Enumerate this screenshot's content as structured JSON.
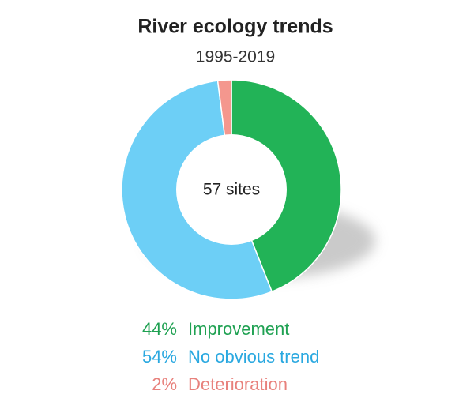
{
  "chart_data": {
    "type": "pie",
    "title": "River ecology trends",
    "subtitle": "1995-2019",
    "center_label": "57 sites",
    "categories": [
      "Improvement",
      "No obvious trend",
      "Deterioration"
    ],
    "values": [
      44,
      54,
      2
    ],
    "value_labels": [
      "44%",
      "54%",
      "2%"
    ],
    "colors": [
      "#22b357",
      "#6dcff6",
      "#f4978e"
    ],
    "label_colors": [
      "#1fa152",
      "#29a8e0",
      "#e8817c"
    ]
  }
}
